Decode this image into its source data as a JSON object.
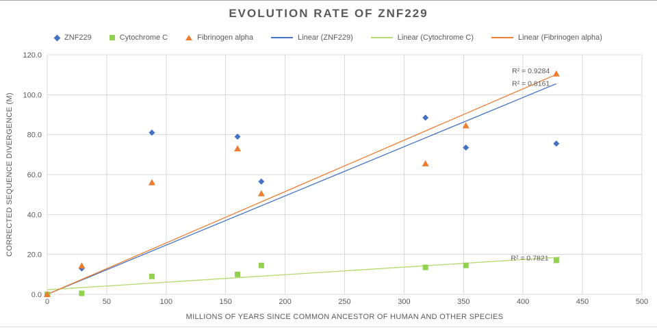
{
  "title": "EVOLUTION RATE OF ZNF229",
  "colors": {
    "znf229_blue": "#4472C4",
    "cytochrome_green": "#92D050",
    "cytochrome_trend_green": "#B4D96E",
    "fibrinogen_orange": "#ED7D31",
    "gridline_gray": "#D9D9D9",
    "text_gray": "#595959",
    "background": "#FFFFFF"
  },
  "legend": {
    "items": [
      {
        "label": "ZNF229",
        "marker": "diamond",
        "color": "#4472C4"
      },
      {
        "label": "Cytochrome C",
        "marker": "square",
        "color": "#92D050"
      },
      {
        "label": "Fibrinogen alpha",
        "marker": "triangle",
        "color": "#ED7D31"
      },
      {
        "label": "Linear (ZNF229)",
        "marker": "line",
        "color": "#4472C4"
      },
      {
        "label": "Linear (Cytochrome C)",
        "marker": "line",
        "color": "#B4D96E"
      },
      {
        "label": "Linear (Fibrinogen alpha)",
        "marker": "line",
        "color": "#ED7D31"
      }
    ]
  },
  "chart_data": {
    "type": "scatter",
    "title": "EVOLUTION RATE OF ZNF229",
    "xlabel": "MILLIONS OF YEARS SINCE COMMON ANCESTOR OF HUMAN AND OTHER SPECIES",
    "ylabel": "CORRECTED SEQUENCE DIVERGENCE (M)",
    "xlim": [
      0,
      500
    ],
    "ylim": [
      0,
      120
    ],
    "x_ticks": [
      0,
      50,
      100,
      150,
      200,
      250,
      300,
      350,
      400,
      450,
      500
    ],
    "y_ticks": [
      0,
      20,
      40,
      60,
      80,
      100,
      120
    ],
    "y_tick_labels": [
      "0.0",
      "20.0",
      "40.0",
      "60.0",
      "80.0",
      "100.0",
      "120.0"
    ],
    "grid": true,
    "legend_position": "top",
    "series": [
      {
        "name": "ZNF229",
        "marker": "diamond",
        "color": "#4472C4",
        "points": [
          [
            0,
            0
          ],
          [
            29,
            13
          ],
          [
            88,
            81
          ],
          [
            160,
            79
          ],
          [
            180,
            56.5
          ],
          [
            318,
            88.5
          ],
          [
            352,
            73.5
          ],
          [
            428,
            75.5
          ]
        ]
      },
      {
        "name": "Cytochrome C",
        "marker": "square",
        "color": "#92D050",
        "points": [
          [
            0,
            0
          ],
          [
            29,
            0.5
          ],
          [
            88,
            9
          ],
          [
            160,
            10
          ],
          [
            180,
            14.5
          ],
          [
            318,
            13.5
          ],
          [
            352,
            14.5
          ],
          [
            428,
            17
          ]
        ]
      },
      {
        "name": "Fibrinogen alpha",
        "marker": "triangle",
        "color": "#ED7D31",
        "points": [
          [
            0,
            0
          ],
          [
            29,
            14.3
          ],
          [
            88,
            56
          ],
          [
            160,
            73
          ],
          [
            180,
            50.5
          ],
          [
            318,
            65.5
          ],
          [
            352,
            84.5
          ],
          [
            428,
            110.5
          ]
        ]
      }
    ],
    "trendlines": [
      {
        "name": "Linear (ZNF229)",
        "color": "#4472C4",
        "r2": 0.8161,
        "from": [
          0,
          0
        ],
        "to": [
          428,
          105.5
        ],
        "r2_label": "R² = 0.8161",
        "label_pos": [
          422.5,
          105.8
        ],
        "label_anchor": "end"
      },
      {
        "name": "Linear (Cytochrome C)",
        "color": "#B4D96E",
        "r2": 0.7821,
        "from": [
          0,
          2.3
        ],
        "to": [
          431,
          18.6
        ],
        "r2_label": "R² = 0.7821",
        "label_pos": [
          421.5,
          18.3
        ],
        "label_anchor": "end"
      },
      {
        "name": "Linear (Fibrinogen alpha)",
        "color": "#ED7D31",
        "r2": 0.9284,
        "from": [
          0,
          0
        ],
        "to": [
          428.6,
          110.3
        ],
        "r2_label": "R² = 0.9284",
        "label_pos": [
          422.5,
          112.2
        ],
        "label_anchor": "end"
      }
    ]
  }
}
